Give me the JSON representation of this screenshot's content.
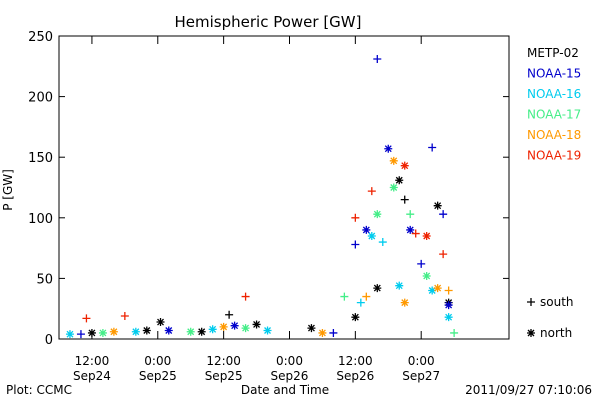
{
  "chart_data": {
    "type": "scatter",
    "title": "Hemispheric Power [GW]",
    "xlabel": "Date and Time",
    "ylabel": "P [GW]",
    "ylim": [
      0,
      250
    ],
    "yticks": [
      0,
      50,
      100,
      150,
      200,
      250
    ],
    "xlim": [
      "2011-09-24T06:00",
      "2011-09-27T16:00"
    ],
    "xticks": [
      {
        "at": "2011-09-24T12:00",
        "time": "12:00",
        "date": "Sep24"
      },
      {
        "at": "2011-09-25T00:00",
        "time": "0:00",
        "date": "Sep25"
      },
      {
        "at": "2011-09-25T12:00",
        "time": "12:00",
        "date": "Sep25"
      },
      {
        "at": "2011-09-26T00:00",
        "time": "0:00",
        "date": "Sep26"
      },
      {
        "at": "2011-09-26T12:00",
        "time": "12:00",
        "date": "Sep26"
      },
      {
        "at": "2011-09-27T00:00",
        "time": "0:00",
        "date": "Sep27"
      }
    ],
    "legend_position": "right",
    "marker_legend": [
      {
        "symbol": "+",
        "label": "south"
      },
      {
        "symbol": "*",
        "label": "north"
      }
    ],
    "series": [
      {
        "name": "METP-02",
        "color": "#000000",
        "points": [
          {
            "x": "2011-09-24T12:00",
            "y": 5,
            "hemisphere": "north"
          },
          {
            "x": "2011-09-24T22:00",
            "y": 7,
            "hemisphere": "north"
          },
          {
            "x": "2011-09-25T00:30",
            "y": 14,
            "hemisphere": "north"
          },
          {
            "x": "2011-09-25T08:00",
            "y": 6,
            "hemisphere": "north"
          },
          {
            "x": "2011-09-25T13:00",
            "y": 20,
            "hemisphere": "south"
          },
          {
            "x": "2011-09-25T18:00",
            "y": 12,
            "hemisphere": "north"
          },
          {
            "x": "2011-09-26T04:00",
            "y": 9,
            "hemisphere": "north"
          },
          {
            "x": "2011-09-26T12:00",
            "y": 18,
            "hemisphere": "north"
          },
          {
            "x": "2011-09-26T16:00",
            "y": 42,
            "hemisphere": "north"
          },
          {
            "x": "2011-09-26T20:00",
            "y": 131,
            "hemisphere": "north"
          },
          {
            "x": "2011-09-26T21:00",
            "y": 115,
            "hemisphere": "south"
          },
          {
            "x": "2011-09-27T03:00",
            "y": 110,
            "hemisphere": "north"
          },
          {
            "x": "2011-09-27T05:00",
            "y": 30,
            "hemisphere": "north"
          }
        ]
      },
      {
        "name": "NOAA-15",
        "color": "#0000cc",
        "points": [
          {
            "x": "2011-09-24T10:00",
            "y": 4,
            "hemisphere": "south"
          },
          {
            "x": "2011-09-25T02:00",
            "y": 7,
            "hemisphere": "north"
          },
          {
            "x": "2011-09-25T14:00",
            "y": 11,
            "hemisphere": "north"
          },
          {
            "x": "2011-09-26T08:00",
            "y": 5,
            "hemisphere": "south"
          },
          {
            "x": "2011-09-26T12:00",
            "y": 78,
            "hemisphere": "south"
          },
          {
            "x": "2011-09-26T14:00",
            "y": 90,
            "hemisphere": "north"
          },
          {
            "x": "2011-09-26T16:00",
            "y": 231,
            "hemisphere": "south"
          },
          {
            "x": "2011-09-26T18:00",
            "y": 157,
            "hemisphere": "north"
          },
          {
            "x": "2011-09-26T22:00",
            "y": 90,
            "hemisphere": "north"
          },
          {
            "x": "2011-09-27T00:00",
            "y": 62,
            "hemisphere": "south"
          },
          {
            "x": "2011-09-27T02:00",
            "y": 158,
            "hemisphere": "south"
          },
          {
            "x": "2011-09-27T04:00",
            "y": 103,
            "hemisphere": "south"
          },
          {
            "x": "2011-09-27T05:00",
            "y": 28,
            "hemisphere": "north"
          }
        ]
      },
      {
        "name": "NOAA-16",
        "color": "#00ccee",
        "points": [
          {
            "x": "2011-09-24T08:00",
            "y": 4,
            "hemisphere": "north"
          },
          {
            "x": "2011-09-24T20:00",
            "y": 6,
            "hemisphere": "north"
          },
          {
            "x": "2011-09-25T10:00",
            "y": 8,
            "hemisphere": "north"
          },
          {
            "x": "2011-09-25T20:00",
            "y": 7,
            "hemisphere": "north"
          },
          {
            "x": "2011-09-26T13:00",
            "y": 30,
            "hemisphere": "south"
          },
          {
            "x": "2011-09-26T15:00",
            "y": 85,
            "hemisphere": "north"
          },
          {
            "x": "2011-09-26T17:00",
            "y": 80,
            "hemisphere": "south"
          },
          {
            "x": "2011-09-26T20:00",
            "y": 44,
            "hemisphere": "north"
          },
          {
            "x": "2011-09-27T02:00",
            "y": 40,
            "hemisphere": "north"
          },
          {
            "x": "2011-09-27T05:00",
            "y": 18,
            "hemisphere": "north"
          }
        ]
      },
      {
        "name": "NOAA-17",
        "color": "#44ee88",
        "points": [
          {
            "x": "2011-09-24T14:00",
            "y": 5,
            "hemisphere": "north"
          },
          {
            "x": "2011-09-25T06:00",
            "y": 6,
            "hemisphere": "north"
          },
          {
            "x": "2011-09-25T16:00",
            "y": 9,
            "hemisphere": "north"
          },
          {
            "x": "2011-09-26T10:00",
            "y": 35,
            "hemisphere": "south"
          },
          {
            "x": "2011-09-26T16:00",
            "y": 103,
            "hemisphere": "north"
          },
          {
            "x": "2011-09-26T19:00",
            "y": 125,
            "hemisphere": "north"
          },
          {
            "x": "2011-09-26T22:00",
            "y": 103,
            "hemisphere": "south"
          },
          {
            "x": "2011-09-27T01:00",
            "y": 52,
            "hemisphere": "north"
          },
          {
            "x": "2011-09-27T06:00",
            "y": 5,
            "hemisphere": "south"
          }
        ]
      },
      {
        "name": "NOAA-18",
        "color": "#ff9900",
        "points": [
          {
            "x": "2011-09-24T16:00",
            "y": 6,
            "hemisphere": "north"
          },
          {
            "x": "2011-09-25T12:00",
            "y": 10,
            "hemisphere": "north"
          },
          {
            "x": "2011-09-26T06:00",
            "y": 5,
            "hemisphere": "north"
          },
          {
            "x": "2011-09-26T14:00",
            "y": 35,
            "hemisphere": "south"
          },
          {
            "x": "2011-09-26T19:00",
            "y": 147,
            "hemisphere": "north"
          },
          {
            "x": "2011-09-26T21:00",
            "y": 30,
            "hemisphere": "north"
          },
          {
            "x": "2011-09-27T03:00",
            "y": 42,
            "hemisphere": "north"
          },
          {
            "x": "2011-09-27T05:00",
            "y": 40,
            "hemisphere": "south"
          }
        ]
      },
      {
        "name": "NOAA-19",
        "color": "#ee2200",
        "points": [
          {
            "x": "2011-09-24T11:00",
            "y": 17,
            "hemisphere": "south"
          },
          {
            "x": "2011-09-24T18:00",
            "y": 19,
            "hemisphere": "south"
          },
          {
            "x": "2011-09-25T16:00",
            "y": 35,
            "hemisphere": "south"
          },
          {
            "x": "2011-09-26T12:00",
            "y": 100,
            "hemisphere": "south"
          },
          {
            "x": "2011-09-26T15:00",
            "y": 122,
            "hemisphere": "south"
          },
          {
            "x": "2011-09-26T21:00",
            "y": 143,
            "hemisphere": "north"
          },
          {
            "x": "2011-09-26T23:00",
            "y": 87,
            "hemisphere": "south"
          },
          {
            "x": "2011-09-27T01:00",
            "y": 85,
            "hemisphere": "north"
          },
          {
            "x": "2011-09-27T04:00",
            "y": 70,
            "hemisphere": "south"
          }
        ]
      }
    ]
  },
  "footer": {
    "left": "Plot: CCMC",
    "right": "2011/09/27 07:10:06"
  }
}
